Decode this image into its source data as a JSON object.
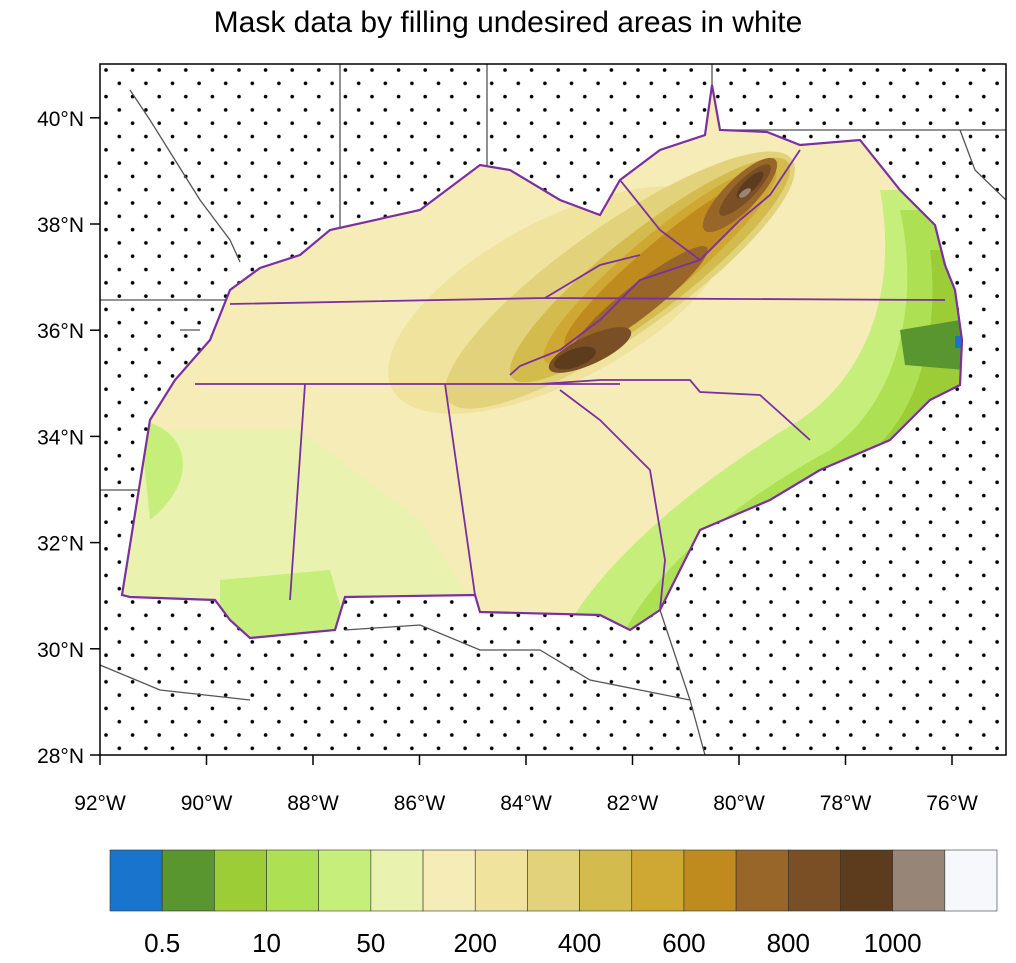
{
  "chart_data": {
    "type": "contour-map",
    "title": "Mask data by filling undesired areas in white",
    "x_ticks": [
      "92°W",
      "90°W",
      "88°W",
      "86°W",
      "84°W",
      "82°W",
      "80°W",
      "78°W",
      "76°W"
    ],
    "x_values": [
      -92,
      -90,
      -88,
      -86,
      -84,
      -82,
      -80,
      -78,
      -76
    ],
    "y_ticks": [
      "40°N",
      "38°N",
      "36°N",
      "34°N",
      "32°N",
      "30°N",
      "28°N"
    ],
    "y_values": [
      40,
      38,
      36,
      34,
      32,
      30,
      28
    ],
    "lon_range": [
      -92,
      -75
    ],
    "lat_range": [
      28,
      41
    ],
    "colorbar": {
      "labels": [
        "0.5",
        "10",
        "50",
        "200",
        "400",
        "600",
        "800",
        "1000"
      ],
      "colors": [
        "#1874cd",
        "#5a9630",
        "#9ccd36",
        "#aee053",
        "#c6ee7a",
        "#e9f2ae",
        "#f6ecb7",
        "#efe39e",
        "#e2d27b",
        "#d3bb4d",
        "#cea832",
        "#bf8b1f",
        "#976628",
        "#7a4f25",
        "#5d3c1e",
        "#978577",
        "#f7f8fc"
      ]
    },
    "mask": "non-land areas outside the Southeast US states filled white with dot stipple"
  }
}
